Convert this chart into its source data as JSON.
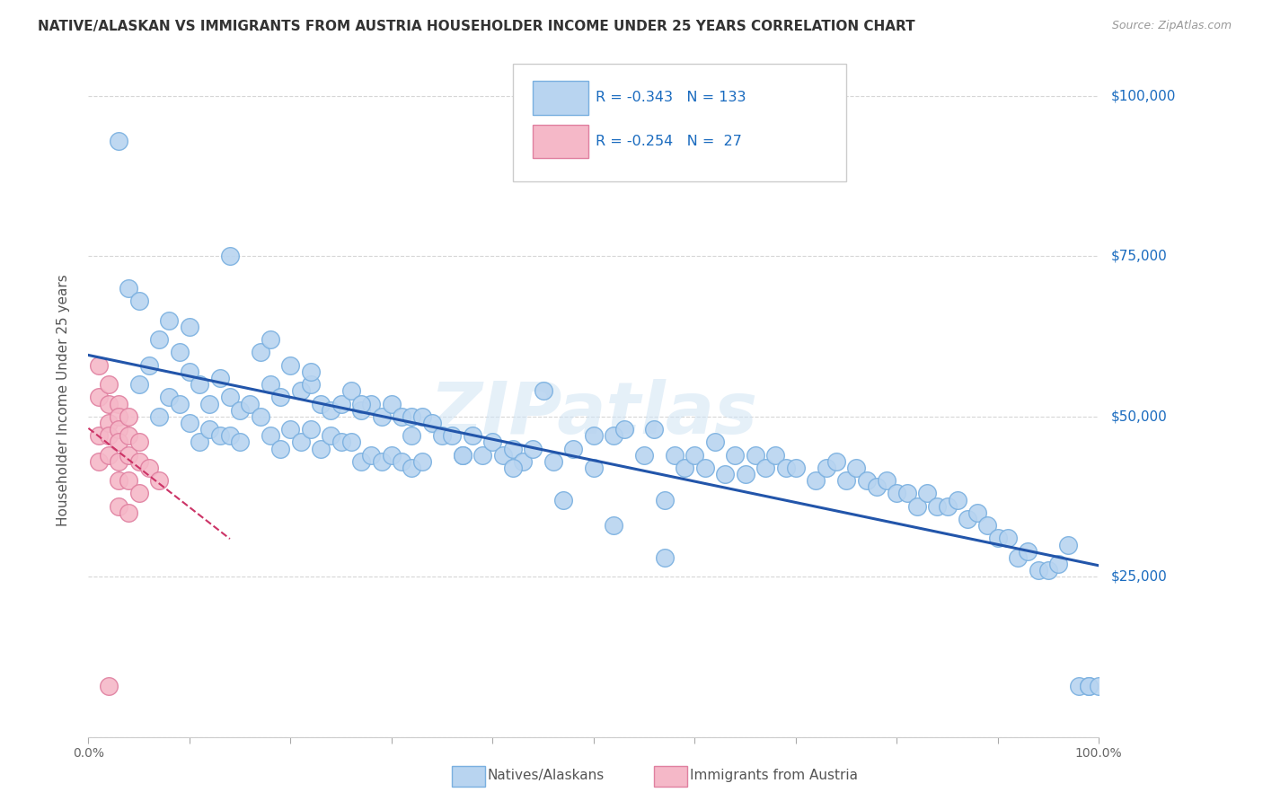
{
  "title": "NATIVE/ALASKAN VS IMMIGRANTS FROM AUSTRIA HOUSEHOLDER INCOME UNDER 25 YEARS CORRELATION CHART",
  "source": "Source: ZipAtlas.com",
  "ylabel": "Householder Income Under 25 years",
  "legend1_color": "#b8d4f0",
  "legend2_color": "#f5b8c8",
  "line1_color": "#2255aa",
  "line2_color": "#cc3366",
  "watermark": "ZIPatlas",
  "background_color": "#ffffff",
  "grid_color": "#cccccc",
  "blue_x": [
    0.03,
    0.04,
    0.05,
    0.05,
    0.06,
    0.07,
    0.07,
    0.08,
    0.08,
    0.09,
    0.09,
    0.1,
    0.1,
    0.11,
    0.11,
    0.12,
    0.12,
    0.13,
    0.13,
    0.14,
    0.14,
    0.15,
    0.15,
    0.16,
    0.17,
    0.17,
    0.18,
    0.18,
    0.19,
    0.19,
    0.2,
    0.2,
    0.21,
    0.21,
    0.22,
    0.22,
    0.23,
    0.23,
    0.24,
    0.24,
    0.25,
    0.25,
    0.26,
    0.26,
    0.27,
    0.27,
    0.28,
    0.28,
    0.29,
    0.29,
    0.3,
    0.3,
    0.31,
    0.31,
    0.32,
    0.32,
    0.33,
    0.33,
    0.34,
    0.35,
    0.36,
    0.37,
    0.38,
    0.39,
    0.4,
    0.41,
    0.42,
    0.43,
    0.44,
    0.45,
    0.46,
    0.48,
    0.5,
    0.5,
    0.52,
    0.53,
    0.55,
    0.56,
    0.57,
    0.58,
    0.59,
    0.6,
    0.61,
    0.62,
    0.63,
    0.64,
    0.65,
    0.66,
    0.67,
    0.68,
    0.69,
    0.7,
    0.72,
    0.73,
    0.74,
    0.75,
    0.76,
    0.77,
    0.78,
    0.79,
    0.8,
    0.81,
    0.82,
    0.83,
    0.84,
    0.85,
    0.86,
    0.87,
    0.88,
    0.89,
    0.9,
    0.91,
    0.92,
    0.93,
    0.94,
    0.95,
    0.96,
    0.97,
    0.98,
    0.99,
    0.99,
    1.0,
    0.1,
    0.14,
    0.18,
    0.22,
    0.27,
    0.32,
    0.37,
    0.42,
    0.47,
    0.52,
    0.57
  ],
  "blue_y": [
    93000,
    70000,
    68000,
    55000,
    58000,
    62000,
    50000,
    65000,
    53000,
    60000,
    52000,
    57000,
    49000,
    55000,
    46000,
    52000,
    48000,
    56000,
    47000,
    53000,
    47000,
    51000,
    46000,
    52000,
    60000,
    50000,
    55000,
    47000,
    53000,
    45000,
    58000,
    48000,
    54000,
    46000,
    55000,
    48000,
    52000,
    45000,
    51000,
    47000,
    52000,
    46000,
    54000,
    46000,
    51000,
    43000,
    52000,
    44000,
    50000,
    43000,
    52000,
    44000,
    50000,
    43000,
    50000,
    42000,
    50000,
    43000,
    49000,
    47000,
    47000,
    44000,
    47000,
    44000,
    46000,
    44000,
    45000,
    43000,
    45000,
    54000,
    43000,
    45000,
    47000,
    42000,
    47000,
    48000,
    44000,
    48000,
    37000,
    44000,
    42000,
    44000,
    42000,
    46000,
    41000,
    44000,
    41000,
    44000,
    42000,
    44000,
    42000,
    42000,
    40000,
    42000,
    43000,
    40000,
    42000,
    40000,
    39000,
    40000,
    38000,
    38000,
    36000,
    38000,
    36000,
    36000,
    37000,
    34000,
    35000,
    33000,
    31000,
    31000,
    28000,
    29000,
    26000,
    26000,
    27000,
    30000,
    8000,
    8000,
    8000,
    8000,
    64000,
    75000,
    62000,
    57000,
    52000,
    47000,
    44000,
    42000,
    37000,
    33000,
    28000
  ],
  "pink_x": [
    0.01,
    0.01,
    0.01,
    0.01,
    0.02,
    0.02,
    0.02,
    0.02,
    0.02,
    0.02,
    0.03,
    0.03,
    0.03,
    0.03,
    0.03,
    0.03,
    0.03,
    0.04,
    0.04,
    0.04,
    0.04,
    0.04,
    0.05,
    0.05,
    0.05,
    0.06,
    0.07
  ],
  "pink_y": [
    58000,
    53000,
    47000,
    43000,
    55000,
    52000,
    49000,
    47000,
    44000,
    8000,
    52000,
    50000,
    48000,
    46000,
    43000,
    40000,
    36000,
    50000,
    47000,
    44000,
    40000,
    35000,
    46000,
    43000,
    38000,
    42000,
    40000
  ]
}
